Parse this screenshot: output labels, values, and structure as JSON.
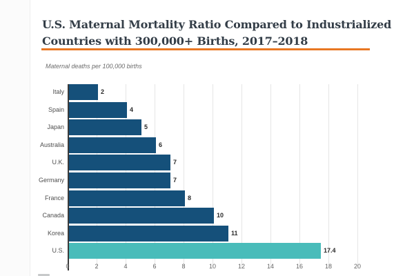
{
  "header": {
    "title_line1": "U.S. Maternal Mortality Ratio Compared to Industrialized",
    "title_line2": "Countries with 300,000+ Births, 2017–2018"
  },
  "subtitle": "Maternal deaths per 100,000 births",
  "colors": {
    "accent_rule_orange": "#e87722",
    "bar_navy": "#15507a",
    "bar_highlight_teal": "#49bcba",
    "title_text": "#333d47"
  },
  "chart_data": {
    "type": "bar",
    "orientation": "horizontal",
    "title": "U.S. Maternal Mortality Ratio Compared to Industrialized Countries with 300,000+ Births, 2017–2018",
    "xlabel": "Maternal deaths per 100,000 births",
    "ylabel": "",
    "categories": [
      "Italy",
      "Spain",
      "Japan",
      "Australia",
      "U.K.",
      "Germany",
      "France",
      "Canada",
      "Korea",
      "U.S."
    ],
    "values": [
      2,
      4,
      5,
      6,
      7,
      7,
      8,
      10,
      11,
      17.4
    ],
    "value_labels": [
      "2",
      "4",
      "5",
      "6",
      "7",
      "7",
      "8",
      "10",
      "11",
      "17.4"
    ],
    "highlight_category": "U.S.",
    "xlim": [
      0,
      20
    ],
    "x_ticks": [
      0,
      2,
      4,
      6,
      8,
      10,
      12,
      14,
      16,
      18,
      20
    ],
    "grid": true,
    "legend": "none"
  }
}
